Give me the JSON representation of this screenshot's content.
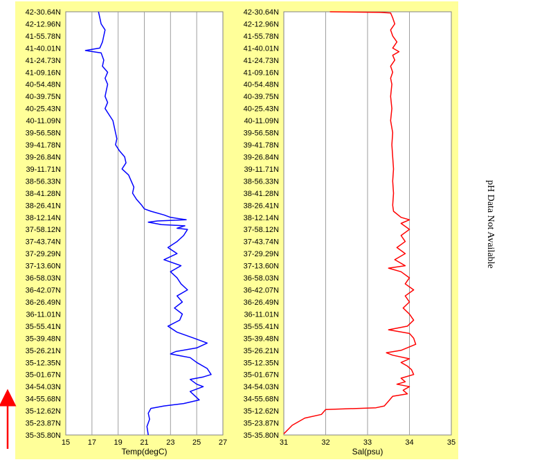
{
  "note": "pH Data Not Available",
  "colors": {
    "background": "#ffff99",
    "temp_line": "#0000ff",
    "sal_line": "#ff0000",
    "arrow": "#ff0000",
    "grid": "#9e9e9e"
  },
  "chart_data": [
    {
      "type": "line",
      "xlabel": "Temp(degC)",
      "ylabel": "",
      "xlim": [
        15,
        27
      ],
      "xticks": [
        15,
        17,
        19,
        21,
        23,
        25,
        27
      ],
      "grid": true,
      "color": "#0000ff",
      "y_ticks": [
        "42-30.64N",
        "42-12.96N",
        "41-55.78N",
        "41-40.01N",
        "41-24.73N",
        "41-09.16N",
        "40-54.48N",
        "40-39.75N",
        "40-25.43N",
        "40-11.09N",
        "39-56.58N",
        "39-41.78N",
        "39-26.84N",
        "39-11.71N",
        "38-56.33N",
        "38-41.28N",
        "38-26.41N",
        "38-12.14N",
        "37-58.12N",
        "37-43.74N",
        "37-29.29N",
        "37-13.60N",
        "36-58.03N",
        "36-42.07N",
        "36-26.49N",
        "36-11.01N",
        "35-55.41N",
        "35-39.48N",
        "35-26.21N",
        "35-12.35N",
        "35-01.67N",
        "34-54.03N",
        "34-55.68N",
        "35-12.62N",
        "35-23.87N",
        "35-35.80N"
      ],
      "series": [
        {
          "values": [
            [
              17.5,
              0
            ],
            [
              17.6,
              0.5
            ],
            [
              17.7,
              1
            ],
            [
              18.0,
              1.5
            ],
            [
              17.9,
              2
            ],
            [
              17.8,
              2.5
            ],
            [
              17.6,
              3
            ],
            [
              16.5,
              3.2
            ],
            [
              17.7,
              3.4
            ],
            [
              17.9,
              4
            ],
            [
              17.8,
              4.5
            ],
            [
              18.2,
              5
            ],
            [
              18.0,
              5.5
            ],
            [
              18.2,
              6
            ],
            [
              18.1,
              6.5
            ],
            [
              18.0,
              7
            ],
            [
              18.2,
              7.5
            ],
            [
              18.0,
              8
            ],
            [
              18.3,
              8.5
            ],
            [
              18.6,
              9
            ],
            [
              18.7,
              9.5
            ],
            [
              18.8,
              10
            ],
            [
              18.9,
              10.5
            ],
            [
              18.8,
              11
            ],
            [
              19.1,
              11.5
            ],
            [
              19.5,
              12
            ],
            [
              19.6,
              12.5
            ],
            [
              19.3,
              13
            ],
            [
              19.8,
              13.5
            ],
            [
              20.0,
              14
            ],
            [
              20.2,
              14.5
            ],
            [
              20.1,
              15
            ],
            [
              20.4,
              15.5
            ],
            [
              20.8,
              16
            ],
            [
              21.0,
              16.3
            ],
            [
              21.5,
              16.5
            ],
            [
              22.5,
              16.8
            ],
            [
              23.0,
              17
            ],
            [
              24.2,
              17.2
            ],
            [
              22.0,
              17.3
            ],
            [
              21.3,
              17.4
            ],
            [
              22.3,
              17.6
            ],
            [
              24.1,
              17.7
            ],
            [
              23.5,
              17.9
            ],
            [
              24.3,
              18
            ],
            [
              24.0,
              18.5
            ],
            [
              23.5,
              19
            ],
            [
              22.8,
              19.5
            ],
            [
              23.5,
              20
            ],
            [
              22.5,
              20.5
            ],
            [
              23.8,
              21
            ],
            [
              23.0,
              21.5
            ],
            [
              23.5,
              22
            ],
            [
              23.8,
              22.5
            ],
            [
              24.3,
              23
            ],
            [
              23.5,
              23.5
            ],
            [
              23.9,
              24
            ],
            [
              23.3,
              24.5
            ],
            [
              23.9,
              25
            ],
            [
              23.7,
              25.5
            ],
            [
              22.8,
              26
            ],
            [
              23.5,
              26.5
            ],
            [
              24.8,
              27
            ],
            [
              25.8,
              27.4
            ],
            [
              25.0,
              27.8
            ],
            [
              23.4,
              28.1
            ],
            [
              23.0,
              28.3
            ],
            [
              24.5,
              28.6
            ],
            [
              25.0,
              29
            ],
            [
              25.8,
              29.5
            ],
            [
              26.1,
              30
            ],
            [
              25.5,
              30.2
            ],
            [
              24.5,
              30.4
            ],
            [
              25.0,
              30.8
            ],
            [
              25.5,
              31
            ],
            [
              24.5,
              31.4
            ],
            [
              24.8,
              31.7
            ],
            [
              25.2,
              32.1
            ],
            [
              24.0,
              32.4
            ],
            [
              22.5,
              32.6
            ],
            [
              21.5,
              32.8
            ],
            [
              21.3,
              33.2
            ],
            [
              21.4,
              33.7
            ],
            [
              21.2,
              34.3
            ],
            [
              21.3,
              35
            ]
          ]
        }
      ]
    },
    {
      "type": "line",
      "xlabel": "Sal(psu)",
      "ylabel": "",
      "xlim": [
        31,
        35
      ],
      "xticks": [
        31,
        32,
        33,
        34,
        35
      ],
      "grid": true,
      "color": "#ff0000",
      "y_ticks": [
        "42-30.64N",
        "42-12.96N",
        "41-55.78N",
        "41-40.01N",
        "41-24.73N",
        "41-09.16N",
        "40-54.48N",
        "40-39.75N",
        "40-25.43N",
        "40-11.09N",
        "39-56.58N",
        "39-41.78N",
        "39-26.84N",
        "39-11.71N",
        "38-56.33N",
        "38-41.28N",
        "38-26.41N",
        "38-12.14N",
        "37-58.12N",
        "37-43.74N",
        "37-29.29N",
        "37-13.60N",
        "36-58.03N",
        "36-42.07N",
        "36-26.49N",
        "36-11.01N",
        "35-55.41N",
        "35-39.48N",
        "35-26.21N",
        "35-12.35N",
        "35-01.67N",
        "34-54.03N",
        "34-55.68N",
        "35-12.62N",
        "35-23.87N",
        "35-35.80N"
      ],
      "series": [
        {
          "values": [
            [
              32.1,
              0
            ],
            [
              33.3,
              0.05
            ],
            [
              33.55,
              0.1
            ],
            [
              33.6,
              0.5
            ],
            [
              33.65,
              1
            ],
            [
              33.55,
              1.5
            ],
            [
              33.6,
              2
            ],
            [
              33.7,
              2.5
            ],
            [
              33.6,
              3
            ],
            [
              33.75,
              3.3
            ],
            [
              33.6,
              3.6
            ],
            [
              33.65,
              4
            ],
            [
              33.55,
              4.5
            ],
            [
              33.6,
              5
            ],
            [
              33.55,
              5.5
            ],
            [
              33.58,
              6
            ],
            [
              33.55,
              7
            ],
            [
              33.58,
              8
            ],
            [
              33.55,
              9
            ],
            [
              33.6,
              10
            ],
            [
              33.58,
              11
            ],
            [
              33.6,
              12
            ],
            [
              33.62,
              13
            ],
            [
              33.6,
              14
            ],
            [
              33.62,
              15
            ],
            [
              33.6,
              16
            ],
            [
              33.62,
              16.5
            ],
            [
              33.8,
              17
            ],
            [
              34.0,
              17.2
            ],
            [
              33.8,
              17.5
            ],
            [
              34.0,
              18
            ],
            [
              33.8,
              18.5
            ],
            [
              33.9,
              19
            ],
            [
              33.7,
              19.5
            ],
            [
              33.9,
              20
            ],
            [
              33.65,
              20.5
            ],
            [
              33.9,
              21
            ],
            [
              33.5,
              21.2
            ],
            [
              33.8,
              21.5
            ],
            [
              34.0,
              22
            ],
            [
              33.9,
              22.5
            ],
            [
              34.1,
              23
            ],
            [
              33.9,
              23.5
            ],
            [
              34.0,
              24
            ],
            [
              33.85,
              24.5
            ],
            [
              34.0,
              25
            ],
            [
              34.1,
              25.5
            ],
            [
              33.95,
              26
            ],
            [
              33.5,
              26.3
            ],
            [
              34.0,
              26.6
            ],
            [
              34.1,
              27
            ],
            [
              34.15,
              27.5
            ],
            [
              33.8,
              28
            ],
            [
              33.45,
              28.2
            ],
            [
              33.6,
              28.4
            ],
            [
              34.0,
              28.7
            ],
            [
              33.8,
              29
            ],
            [
              33.95,
              29.3
            ],
            [
              34.05,
              29.6
            ],
            [
              34.1,
              30
            ],
            [
              33.8,
              30.3
            ],
            [
              33.9,
              30.6
            ],
            [
              33.7,
              30.8
            ],
            [
              34.0,
              31
            ],
            [
              33.85,
              31.3
            ],
            [
              33.95,
              31.6
            ],
            [
              33.6,
              31.8
            ],
            [
              33.5,
              32.2
            ],
            [
              33.4,
              32.6
            ],
            [
              33.2,
              32.75
            ],
            [
              32.0,
              32.9
            ],
            [
              31.9,
              33.3
            ],
            [
              31.5,
              33.6
            ],
            [
              31.2,
              34.2
            ],
            [
              31.0,
              34.9
            ]
          ]
        }
      ]
    }
  ]
}
